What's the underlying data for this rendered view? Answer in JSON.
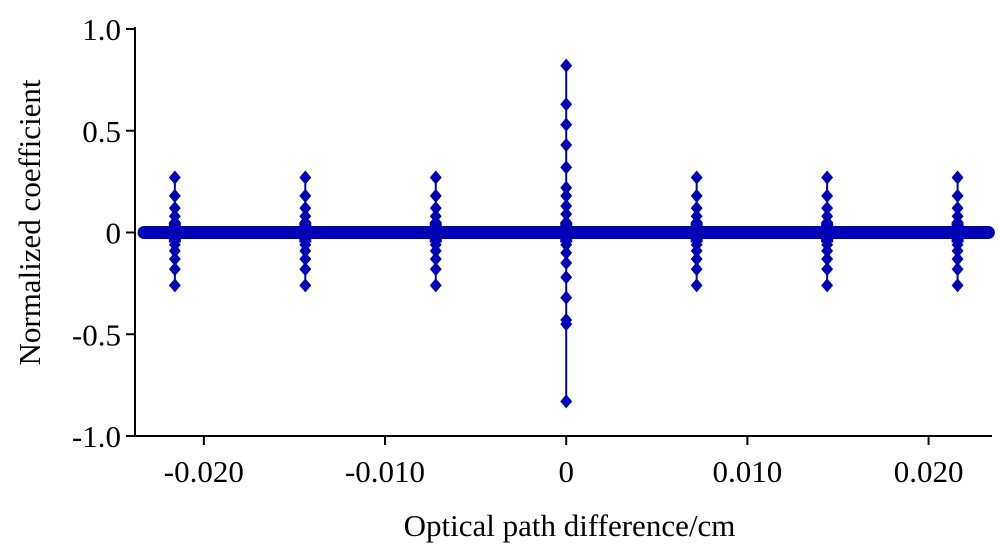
{
  "chart_data": {
    "type": "scatter",
    "title": "",
    "xlabel": "Optical path difference/cm",
    "ylabel": "Normalized coefficient",
    "xlim": [
      -0.0238,
      0.0235
    ],
    "ylim": [
      -1.0,
      1.0
    ],
    "x_ticks": [
      -0.02,
      -0.01,
      0,
      0.01,
      0.02
    ],
    "x_tick_labels": [
      "-0.020",
      "-0.010",
      "0",
      "0.010",
      "0.020"
    ],
    "y_ticks": [
      1.0,
      0.5,
      0,
      -0.5,
      -1.0
    ],
    "y_tick_labels": [
      "1.0",
      "0.5",
      "0",
      "-0.5",
      "-1.0"
    ],
    "grid": false,
    "legend": "none",
    "color": "#0000b4",
    "marker": "diamond",
    "baseline": {
      "value": 0,
      "x_range": [
        -0.0233,
        0.0233
      ]
    },
    "series": [
      {
        "points": [
          {
            "x": -0.0216,
            "y": 0.27
          },
          {
            "x": -0.0216,
            "y": 0.18
          },
          {
            "x": -0.0216,
            "y": 0.12
          },
          {
            "x": -0.0216,
            "y": 0.08
          },
          {
            "x": -0.0216,
            "y": 0.05
          },
          {
            "x": -0.0216,
            "y": 0.03
          },
          {
            "x": -0.0216,
            "y": -0.03
          },
          {
            "x": -0.0216,
            "y": -0.06
          },
          {
            "x": -0.0216,
            "y": -0.09
          },
          {
            "x": -0.0216,
            "y": -0.13
          },
          {
            "x": -0.0216,
            "y": -0.18
          },
          {
            "x": -0.0216,
            "y": -0.26
          },
          {
            "x": -0.0144,
            "y": 0.27
          },
          {
            "x": -0.0144,
            "y": 0.18
          },
          {
            "x": -0.0144,
            "y": 0.12
          },
          {
            "x": -0.0144,
            "y": 0.08
          },
          {
            "x": -0.0144,
            "y": 0.05
          },
          {
            "x": -0.0144,
            "y": 0.03
          },
          {
            "x": -0.0144,
            "y": -0.03
          },
          {
            "x": -0.0144,
            "y": -0.06
          },
          {
            "x": -0.0144,
            "y": -0.09
          },
          {
            "x": -0.0144,
            "y": -0.13
          },
          {
            "x": -0.0144,
            "y": -0.18
          },
          {
            "x": -0.0144,
            "y": -0.26
          },
          {
            "x": -0.0072,
            "y": 0.27
          },
          {
            "x": -0.0072,
            "y": 0.18
          },
          {
            "x": -0.0072,
            "y": 0.12
          },
          {
            "x": -0.0072,
            "y": 0.08
          },
          {
            "x": -0.0072,
            "y": 0.05
          },
          {
            "x": -0.0072,
            "y": 0.03
          },
          {
            "x": -0.0072,
            "y": -0.03
          },
          {
            "x": -0.0072,
            "y": -0.06
          },
          {
            "x": -0.0072,
            "y": -0.09
          },
          {
            "x": -0.0072,
            "y": -0.13
          },
          {
            "x": -0.0072,
            "y": -0.18
          },
          {
            "x": -0.0072,
            "y": -0.26
          },
          {
            "x": 0,
            "y": 0.82
          },
          {
            "x": 0,
            "y": 0.63
          },
          {
            "x": 0,
            "y": 0.53
          },
          {
            "x": 0,
            "y": 0.43
          },
          {
            "x": 0,
            "y": 0.32
          },
          {
            "x": 0,
            "y": 0.22
          },
          {
            "x": 0,
            "y": 0.18
          },
          {
            "x": 0,
            "y": 0.13
          },
          {
            "x": 0,
            "y": 0.09
          },
          {
            "x": 0,
            "y": 0.05
          },
          {
            "x": 0,
            "y": 0.03
          },
          {
            "x": 0,
            "y": -0.03
          },
          {
            "x": 0,
            "y": -0.06
          },
          {
            "x": 0,
            "y": -0.1
          },
          {
            "x": 0,
            "y": -0.15
          },
          {
            "x": 0,
            "y": -0.22
          },
          {
            "x": 0,
            "y": -0.32
          },
          {
            "x": 0,
            "y": -0.43
          },
          {
            "x": 0,
            "y": -0.45
          },
          {
            "x": 0,
            "y": -0.83
          },
          {
            "x": 0.0072,
            "y": 0.27
          },
          {
            "x": 0.0072,
            "y": 0.18
          },
          {
            "x": 0.0072,
            "y": 0.12
          },
          {
            "x": 0.0072,
            "y": 0.08
          },
          {
            "x": 0.0072,
            "y": 0.05
          },
          {
            "x": 0.0072,
            "y": 0.03
          },
          {
            "x": 0.0072,
            "y": -0.03
          },
          {
            "x": 0.0072,
            "y": -0.06
          },
          {
            "x": 0.0072,
            "y": -0.09
          },
          {
            "x": 0.0072,
            "y": -0.13
          },
          {
            "x": 0.0072,
            "y": -0.18
          },
          {
            "x": 0.0072,
            "y": -0.26
          },
          {
            "x": 0.0144,
            "y": 0.27
          },
          {
            "x": 0.0144,
            "y": 0.18
          },
          {
            "x": 0.0144,
            "y": 0.12
          },
          {
            "x": 0.0144,
            "y": 0.08
          },
          {
            "x": 0.0144,
            "y": 0.05
          },
          {
            "x": 0.0144,
            "y": 0.03
          },
          {
            "x": 0.0144,
            "y": -0.03
          },
          {
            "x": 0.0144,
            "y": -0.06
          },
          {
            "x": 0.0144,
            "y": -0.09
          },
          {
            "x": 0.0144,
            "y": -0.13
          },
          {
            "x": 0.0144,
            "y": -0.18
          },
          {
            "x": 0.0144,
            "y": -0.26
          },
          {
            "x": 0.0216,
            "y": 0.27
          },
          {
            "x": 0.0216,
            "y": 0.18
          },
          {
            "x": 0.0216,
            "y": 0.12
          },
          {
            "x": 0.0216,
            "y": 0.08
          },
          {
            "x": 0.0216,
            "y": 0.05
          },
          {
            "x": 0.0216,
            "y": 0.03
          },
          {
            "x": 0.0216,
            "y": -0.03
          },
          {
            "x": 0.0216,
            "y": -0.06
          },
          {
            "x": 0.0216,
            "y": -0.09
          },
          {
            "x": 0.0216,
            "y": -0.13
          },
          {
            "x": 0.0216,
            "y": -0.18
          },
          {
            "x": 0.0216,
            "y": -0.26
          }
        ]
      }
    ]
  }
}
